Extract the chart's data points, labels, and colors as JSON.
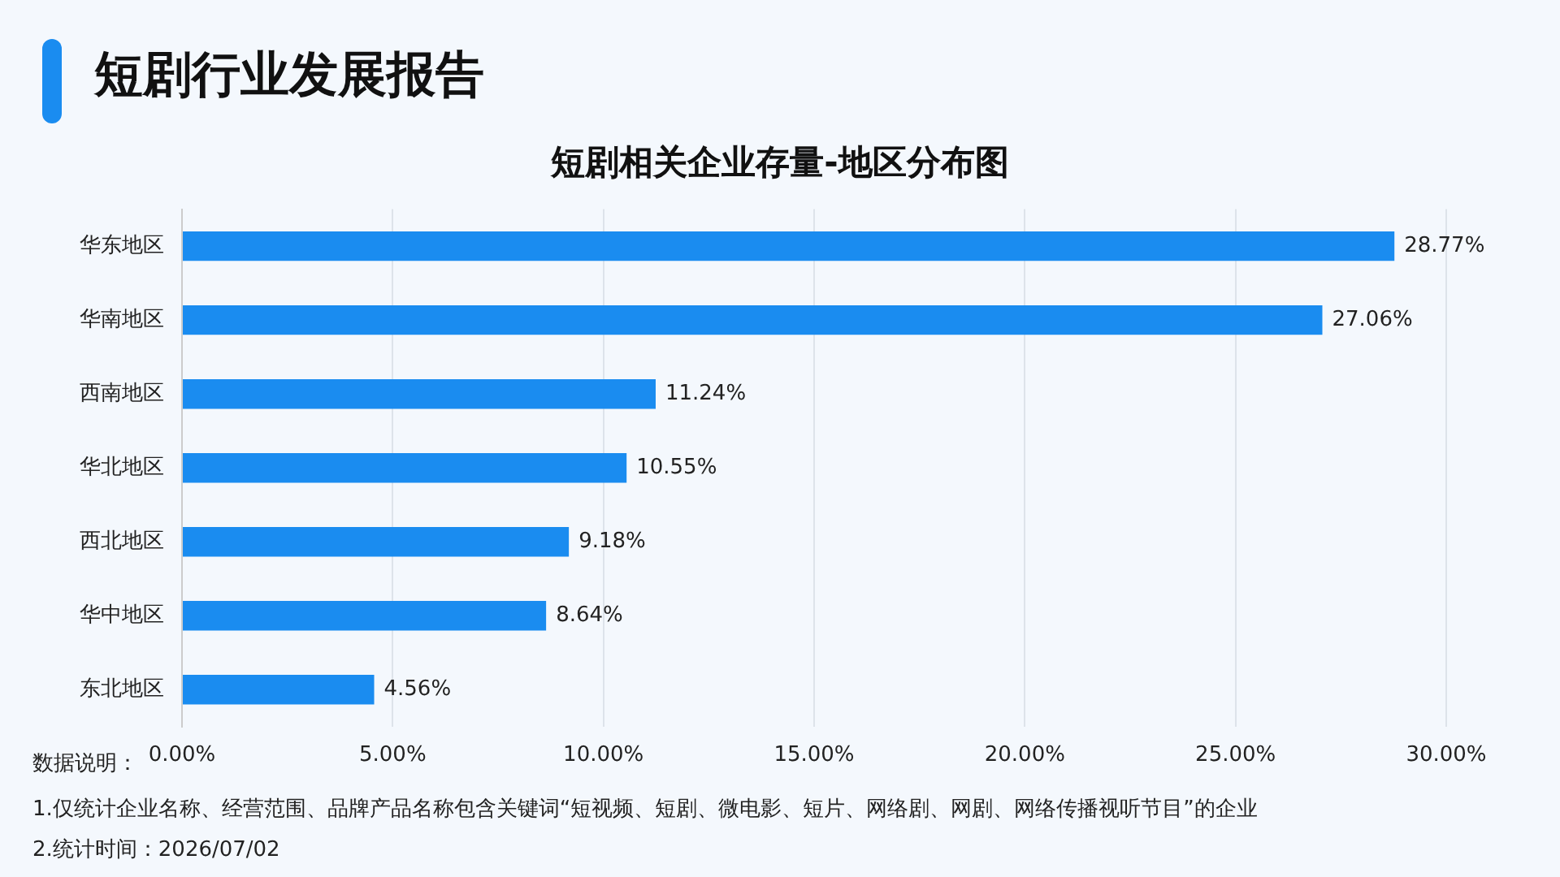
{
  "chart_data": {
    "type": "bar",
    "orientation": "horizontal",
    "title": "短剧行业发展报告",
    "subtitle": "短剧相关企业存量-地区分布图",
    "categories": [
      "华东地区",
      "华南地区",
      "西南地区",
      "华北地区",
      "西北地区",
      "华中地区",
      "东北地区"
    ],
    "values": [
      28.77,
      27.06,
      11.24,
      10.55,
      9.18,
      8.64,
      4.56
    ],
    "value_labels": [
      "28.77%",
      "27.06%",
      "11.24%",
      "10.55%",
      "9.18%",
      "8.64%",
      "4.56%"
    ],
    "color": "#1a8cf0",
    "xlim": [
      0,
      30
    ],
    "xticks": [
      {
        "value": 0,
        "label": "0.00%"
      },
      {
        "value": 5,
        "label": "5.00%"
      },
      {
        "value": 10,
        "label": "10.00%"
      },
      {
        "value": 15,
        "label": "15.00%"
      },
      {
        "value": 20,
        "label": "20.00%"
      },
      {
        "value": 25,
        "label": "25.00%"
      },
      {
        "value": 30,
        "label": "30.00%"
      }
    ],
    "grid": "x",
    "annotations": [
      "数据说明：",
      "1.仅统计企业名称、经营范围、品牌产品名称包含关键词“短视频、短剧、微电影、短片、网络剧、网剧、网络传播视听节目”的企业",
      "2.统计时间：2026/07/02"
    ]
  }
}
